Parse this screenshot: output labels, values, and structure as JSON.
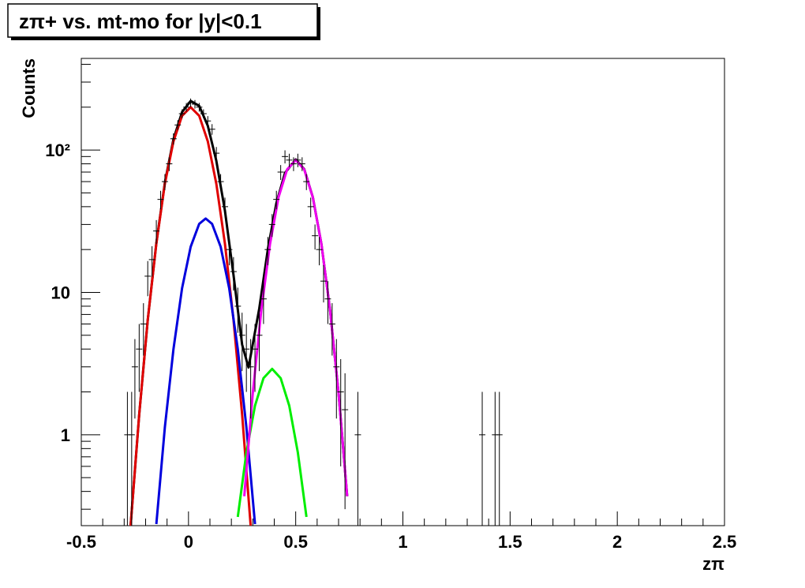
{
  "chart_data": {
    "type": "histogram-fit",
    "title": "zπ+ vs. mt-mo for |y|<0.1",
    "x_label": "zπ",
    "y_label": "Counts",
    "xlim": [
      -0.5,
      2.5
    ],
    "xticks": [
      -0.5,
      0,
      0.5,
      1,
      1.5,
      2,
      2.5
    ],
    "ylim": [
      0.23,
      440
    ],
    "yticks": [
      1,
      10,
      {
        "value": 100,
        "label": "10²"
      }
    ],
    "log_y": true,
    "points": {
      "color": "#000000",
      "x": [
        -0.285,
        -0.265,
        -0.25,
        -0.23,
        -0.21,
        -0.19,
        -0.17,
        -0.15,
        -0.13,
        -0.11,
        -0.09,
        -0.07,
        -0.05,
        -0.03,
        -0.01,
        0.01,
        0.03,
        0.05,
        0.07,
        0.09,
        0.11,
        0.13,
        0.15,
        0.17,
        0.19,
        0.21,
        0.23,
        0.25,
        0.27,
        0.29,
        0.31,
        0.33,
        0.35,
        0.37,
        0.39,
        0.41,
        0.43,
        0.45,
        0.47,
        0.49,
        0.51,
        0.53,
        0.55,
        0.57,
        0.59,
        0.61,
        0.63,
        0.65,
        0.67,
        0.69,
        0.71,
        0.73,
        0.79,
        1.37,
        1.43,
        1.45
      ],
      "values": [
        1,
        1,
        3,
        4,
        6,
        13,
        17,
        27,
        45,
        60,
        80,
        120,
        150,
        180,
        200,
        215,
        210,
        200,
        180,
        160,
        140,
        95,
        60,
        40,
        20,
        14,
        8,
        5,
        4,
        3,
        4,
        5,
        9,
        20,
        30,
        45,
        70,
        90,
        85,
        80,
        85,
        80,
        60,
        40,
        25,
        20,
        12,
        9,
        6,
        3,
        2,
        1.5,
        1,
        1,
        1,
        1
      ],
      "errors": [
        1,
        1,
        1.7,
        2,
        2.4,
        3.6,
        4.1,
        5.2,
        6.7,
        7.7,
        8.9,
        11,
        12,
        13,
        14,
        15,
        14.5,
        14,
        13,
        13,
        12,
        10,
        7.7,
        6.3,
        4.5,
        3.7,
        2.8,
        2.2,
        2,
        1.7,
        2,
        2.2,
        3,
        4.5,
        5.5,
        6.7,
        8.4,
        9.5,
        9.2,
        8.9,
        9.2,
        8.9,
        7.7,
        6.3,
        5,
        4.5,
        3.5,
        3,
        2.4,
        1.7,
        1.4,
        1.2,
        1,
        1,
        1,
        1
      ]
    },
    "series": [
      {
        "color": "#000000",
        "x": [
          -0.27,
          -0.23,
          -0.19,
          -0.15,
          -0.11,
          -0.07,
          -0.03,
          0.01,
          0.05,
          0.09,
          0.13,
          0.17,
          0.21,
          0.25,
          0.28,
          0.33,
          0.37,
          0.41,
          0.45,
          0.5,
          0.54,
          0.58,
          0.62,
          0.66,
          0.7,
          0.74
        ],
        "values": [
          0.23,
          1.39,
          6.4,
          22.2,
          59.1,
          119,
          185,
          221,
          204,
          148,
          84,
          37.5,
          13.2,
          4.3,
          2.97,
          7.7,
          20.1,
          42.4,
          69,
          86,
          73.4,
          46.6,
          21.8,
          7.6,
          1.96,
          0.37
        ]
      },
      {
        "color": "#e00000",
        "x": [
          -0.27,
          -0.23,
          -0.19,
          -0.15,
          -0.11,
          -0.07,
          -0.03,
          0.01,
          0.05,
          0.09,
          0.13,
          0.17,
          0.21,
          0.25,
          0.29
        ],
        "values": [
          0.23,
          1.39,
          6.4,
          22,
          58,
          115,
          174,
          200,
          174,
          115,
          58,
          22,
          6.4,
          1.39,
          0.23
        ]
      },
      {
        "color": "#0000dd",
        "x": [
          -0.15,
          -0.11,
          -0.07,
          -0.03,
          0.01,
          0.05,
          0.08,
          0.11,
          0.15,
          0.19,
          0.23,
          0.27,
          0.31
        ],
        "values": [
          0.236,
          1.13,
          4.0,
          10.7,
          20.9,
          30.3,
          33,
          30.3,
          20.9,
          10.7,
          4.0,
          1.13,
          0.236
        ]
      },
      {
        "color": "#00ee00",
        "x": [
          0.23,
          0.27,
          0.31,
          0.35,
          0.39,
          0.43,
          0.47,
          0.51,
          0.55
        ],
        "values": [
          0.265,
          0.75,
          1.6,
          2.5,
          2.9,
          2.5,
          1.6,
          0.75,
          0.265
        ]
      },
      {
        "color": "#ee00ee",
        "x": [
          0.26,
          0.3,
          0.34,
          0.38,
          0.42,
          0.46,
          0.5,
          0.54,
          0.58,
          0.62,
          0.66,
          0.7,
          0.74
        ],
        "values": [
          0.37,
          1.96,
          7.6,
          21.8,
          46.5,
          73,
          85,
          73,
          46.5,
          21.8,
          7.6,
          1.96,
          0.37
        ]
      }
    ]
  }
}
